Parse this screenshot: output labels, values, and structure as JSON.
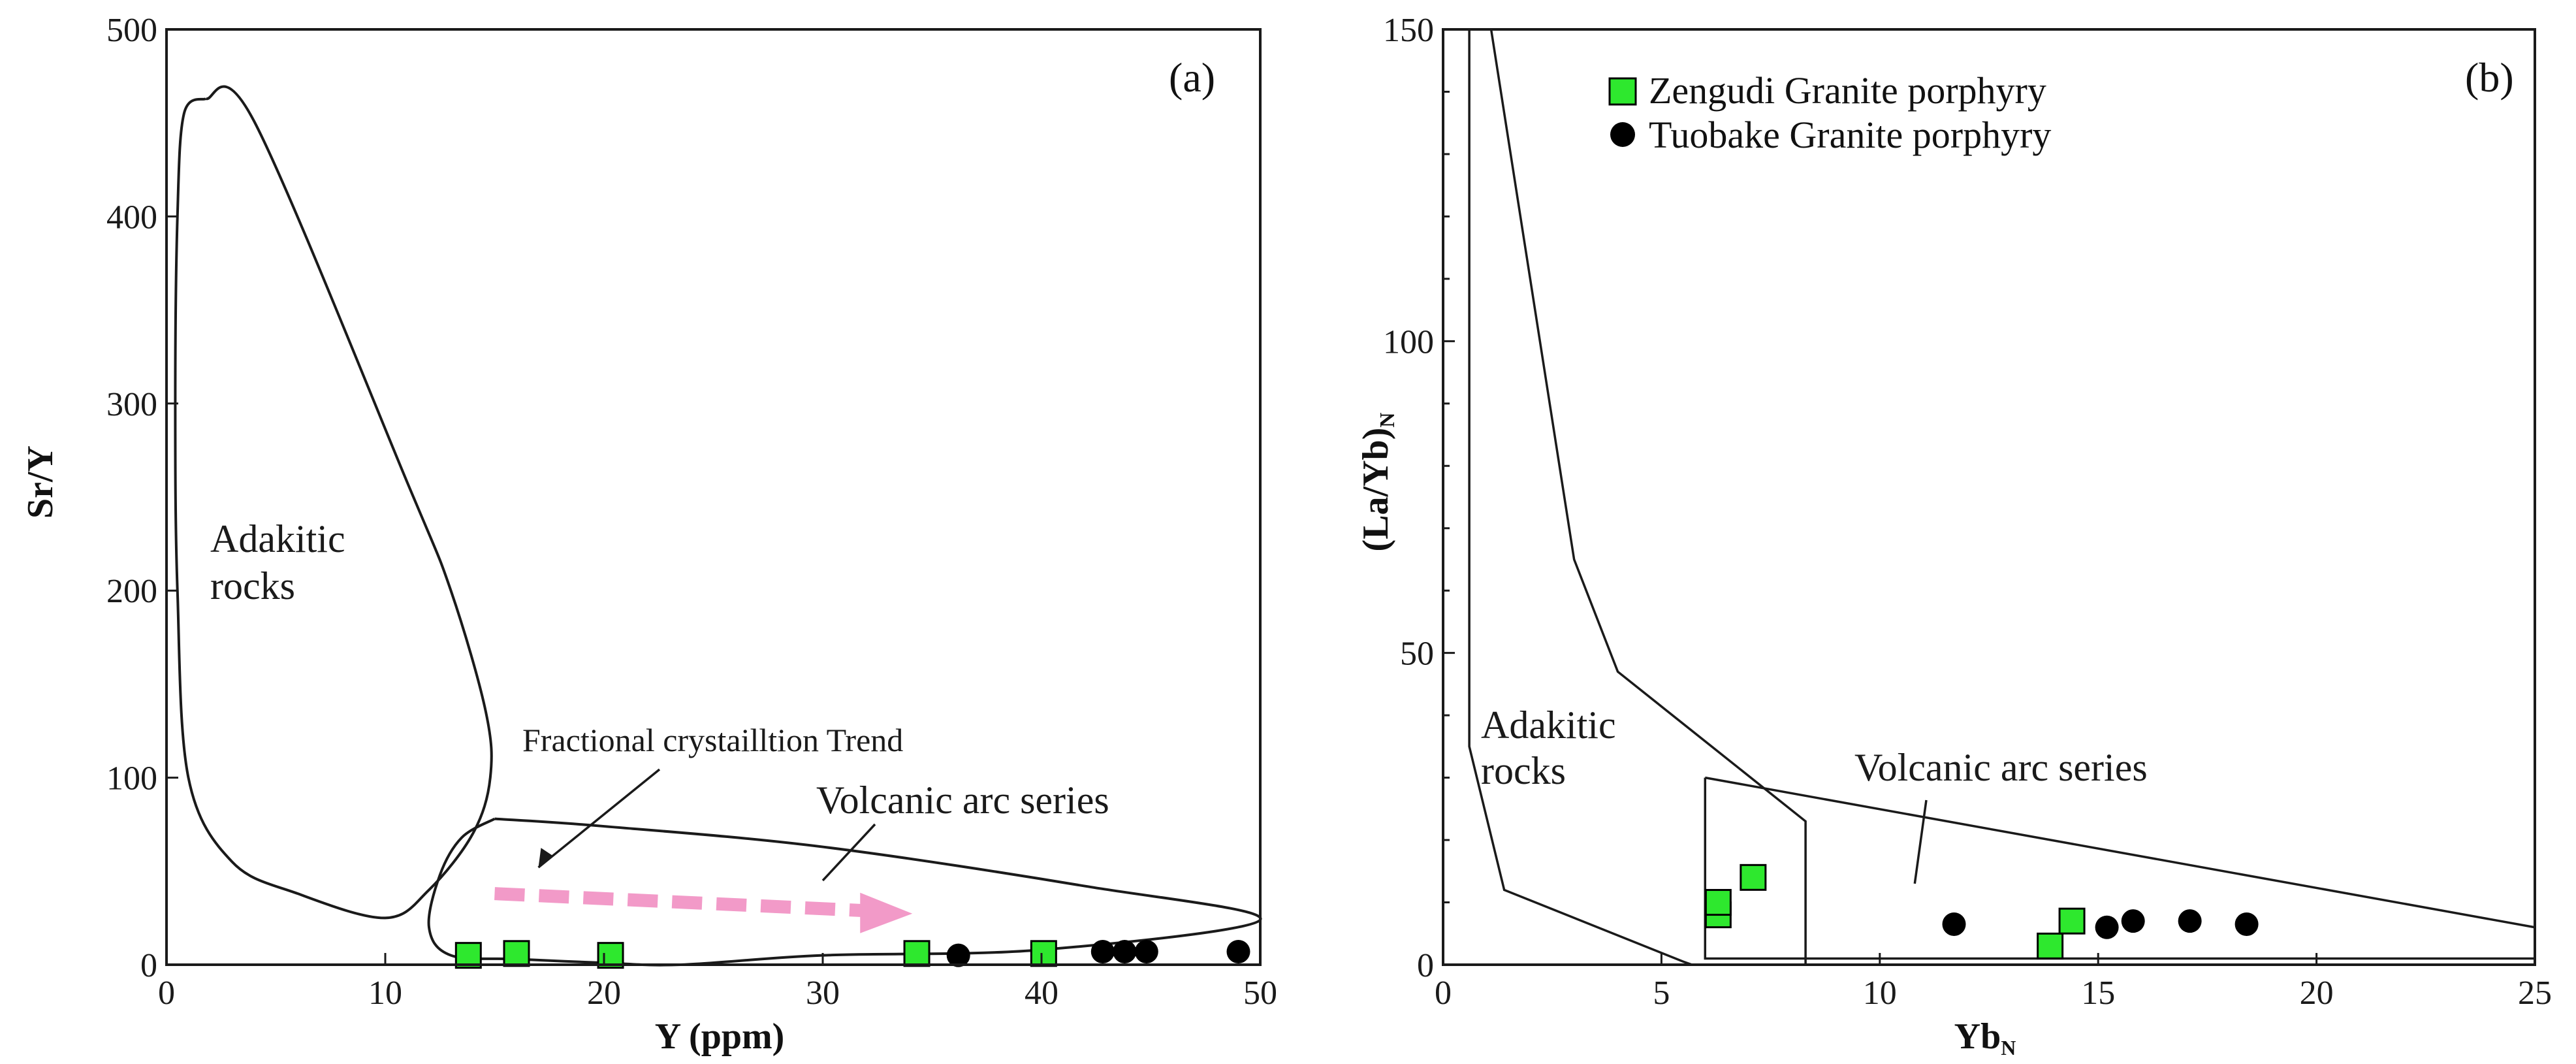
{
  "colors": {
    "zengudi": "#2ee82e",
    "tuobake": "#000000",
    "trend_arrow": "#f29ac8",
    "line": "#1a1a1a"
  },
  "legend": {
    "zengudi": "Zengudi Granite porphyry",
    "tuobake": "Tuobake Granite porphyry"
  },
  "chart_data": [
    {
      "panel": "(a)",
      "type": "scatter",
      "xlabel": "Y (ppm)",
      "ylabel": "Sr/Y",
      "xlim": [
        0,
        50
      ],
      "ylim": [
        0,
        500
      ],
      "xticks": [
        0,
        10,
        20,
        30,
        40,
        50
      ],
      "yticks": [
        0,
        100,
        200,
        300,
        400,
        500
      ],
      "x_tick_labels": [
        "0",
        "10",
        "20",
        "30",
        "40",
        "50"
      ],
      "y_tick_labels": [
        "0",
        "100",
        "200",
        "300",
        "400",
        "500"
      ],
      "series": [
        {
          "name": "Zengudi Granite porphyry",
          "marker": "square",
          "x": [
            13.8,
            16.0,
            20.3,
            34.3,
            40.1
          ],
          "y": [
            5,
            6,
            5,
            6,
            6
          ]
        },
        {
          "name": "Tuobake Granite porphyry",
          "marker": "circle",
          "x": [
            36.2,
            42.8,
            43.8,
            44.8,
            49.0
          ],
          "y": [
            5,
            7,
            7,
            7,
            7
          ]
        }
      ],
      "fields": [
        {
          "name": "Adakitic rocks",
          "label_lines": [
            "Adakitic",
            "rocks"
          ],
          "polygon": [
            [
              1.8,
              463
            ],
            [
              4,
              451
            ],
            [
              11,
              258
            ],
            [
              13,
              200
            ],
            [
              14.6,
              135
            ],
            [
              14.8,
              100
            ],
            [
              14,
              70
            ],
            [
              12,
              40
            ],
            [
              10,
              25
            ],
            [
              6,
              38
            ],
            [
              3,
              55
            ],
            [
              1,
              100
            ],
            [
              0.5,
              200
            ],
            [
              0.4,
              300
            ],
            [
              0.5,
              400
            ],
            [
              0.8,
              455
            ],
            [
              1.8,
              463
            ]
          ]
        },
        {
          "name": "Volcanic arc series",
          "polygon": [
            [
              15,
              78
            ],
            [
              20,
              74
            ],
            [
              30,
              63
            ],
            [
              42,
              42
            ],
            [
              50,
              24
            ],
            [
              40,
              8
            ],
            [
              30,
              5
            ],
            [
              23.5,
              0
            ],
            [
              20,
              1
            ],
            [
              16,
              3
            ],
            [
              13,
              5
            ],
            [
              12,
              20
            ],
            [
              12.5,
              48
            ],
            [
              13.5,
              68
            ],
            [
              15,
              78
            ]
          ]
        }
      ],
      "annotations": [
        {
          "text": "Fractional crystailltion Trend",
          "arrow_to": [
            17,
            52
          ]
        },
        {
          "text": "Volcanic arc series",
          "arrow_to": [
            30,
            45
          ]
        }
      ],
      "trend_arrow": {
        "from": [
          15,
          38
        ],
        "to": [
          33.5,
          28
        ]
      }
    },
    {
      "panel": "(b)",
      "type": "scatter",
      "xlabel_main": "Yb",
      "xlabel_sub": "N",
      "ylabel_main": "(La/Yb)",
      "ylabel_sub": "N",
      "xlim": [
        0,
        25
      ],
      "ylim": [
        0,
        150
      ],
      "xticks": [
        0,
        5,
        10,
        15,
        20,
        25
      ],
      "yticks": [
        0,
        50,
        100,
        150
      ],
      "x_tick_labels": [
        "0",
        "5",
        "10",
        "15",
        "20",
        "25"
      ],
      "y_tick_labels": [
        "0",
        "50",
        "100",
        "150"
      ],
      "series": [
        {
          "name": "Zengudi Granite porphyry",
          "marker": "square",
          "x": [
            6.3,
            6.3,
            7.1,
            13.9,
            14.4
          ],
          "y": [
            8,
            10,
            14,
            3,
            7
          ]
        },
        {
          "name": "Tuobake Granite porphyry",
          "marker": "circle",
          "x": [
            11.7,
            15.2,
            15.8,
            17.1,
            18.4
          ],
          "y": [
            6.5,
            6,
            7,
            7,
            6.5
          ]
        }
      ],
      "fields": [
        {
          "name": "Adakitic rocks",
          "label_lines": [
            "Adakitic",
            "rocks"
          ],
          "polygon": [
            [
              0.6,
              150
            ],
            [
              1.1,
              150
            ],
            [
              3,
              65
            ],
            [
              4,
              47
            ],
            [
              8.3,
              23
            ],
            [
              8.3,
              0
            ],
            [
              5.7,
              0
            ],
            [
              5.5,
              0.5
            ],
            [
              1.4,
              12
            ],
            [
              0.6,
              35
            ],
            [
              0.6,
              150
            ]
          ]
        },
        {
          "name": "Volcanic arc series",
          "polygon": [
            [
              6,
              30
            ],
            [
              25,
              6
            ],
            [
              25,
              1
            ],
            [
              6,
              1
            ],
            [
              6,
              30
            ]
          ]
        }
      ],
      "annotations": [
        {
          "text": "Volcanic arc series",
          "arrow_to": [
            10.8,
            13
          ]
        }
      ]
    }
  ]
}
